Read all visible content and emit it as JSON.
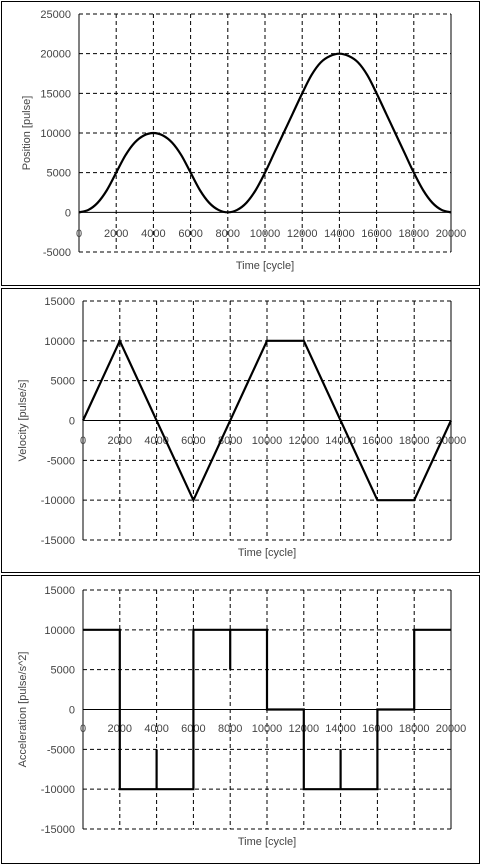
{
  "chart_data": [
    {
      "type": "line",
      "title": "",
      "xlabel": "Time [cycle]",
      "ylabel": "Position [pulse]",
      "xlim": [
        0,
        20000
      ],
      "ylim": [
        -5000,
        25000
      ],
      "xticks": [
        0,
        2000,
        4000,
        6000,
        8000,
        10000,
        12000,
        14000,
        16000,
        18000,
        20000
      ],
      "yticks": [
        -5000,
        0,
        5000,
        10000,
        15000,
        20000,
        25000
      ],
      "grid": true,
      "series": [
        {
          "x": [
            0,
            500,
            1000,
            1500,
            2000,
            2500,
            3000,
            3500,
            4000,
            4500,
            5000,
            5500,
            6000,
            6500,
            7000,
            7500,
            8000,
            8500,
            9000,
            9500,
            10000,
            10500,
            11000,
            11500,
            12000,
            12500,
            13000,
            13500,
            14000,
            14500,
            15000,
            15500,
            16000,
            16500,
            17000,
            17500,
            18000,
            18500,
            19000,
            19500,
            20000
          ],
          "values": [
            0,
            300,
            1200,
            2800,
            5000,
            7200,
            8800,
            9700,
            10000,
            9700,
            8800,
            7200,
            5000,
            2800,
            1200,
            300,
            0,
            300,
            1200,
            2800,
            5000,
            7500,
            10000,
            12500,
            15000,
            17300,
            18900,
            19700,
            20000,
            19700,
            18900,
            17300,
            15000,
            12500,
            10000,
            7500,
            5000,
            2800,
            1200,
            300,
            0
          ]
        }
      ]
    },
    {
      "type": "line",
      "title": "",
      "xlabel": "Time [cycle]",
      "ylabel": "Velocity [pulse/s]",
      "xlim": [
        0,
        20000
      ],
      "ylim": [
        -15000,
        15000
      ],
      "xticks": [
        0,
        2000,
        4000,
        6000,
        8000,
        10000,
        12000,
        14000,
        16000,
        18000,
        20000
      ],
      "yticks": [
        -15000,
        -10000,
        -5000,
        0,
        5000,
        10000,
        15000
      ],
      "grid": true,
      "series": [
        {
          "x": [
            0,
            2000,
            6000,
            10000,
            12000,
            16000,
            18000,
            20000
          ],
          "values": [
            0,
            10000,
            -10000,
            10000,
            10000,
            -10000,
            -10000,
            0
          ]
        }
      ]
    },
    {
      "type": "line",
      "title": "",
      "xlabel": "Time [cycle]",
      "ylabel": "Acceleration [pulse/s^2]",
      "xlim": [
        0,
        20000
      ],
      "ylim": [
        -15000,
        15000
      ],
      "xticks": [
        0,
        2000,
        4000,
        6000,
        8000,
        10000,
        12000,
        14000,
        16000,
        18000,
        20000
      ],
      "yticks": [
        -15000,
        -10000,
        -5000,
        0,
        5000,
        10000,
        15000
      ],
      "grid": true,
      "series": [
        {
          "x": [
            0,
            2000,
            2000,
            4000,
            4000,
            4000,
            6000,
            6000,
            8000,
            8000,
            8000,
            10000,
            10000,
            12000,
            12000,
            14000,
            14000,
            14000,
            16000,
            16000,
            18000,
            18000,
            20000
          ],
          "values": [
            10000,
            10000,
            -10000,
            -10000,
            -5000,
            -10000,
            -10000,
            10000,
            10000,
            5000,
            10000,
            10000,
            0,
            0,
            -10000,
            -10000,
            -5000,
            -10000,
            -10000,
            0,
            0,
            10000,
            10000
          ]
        }
      ]
    }
  ]
}
